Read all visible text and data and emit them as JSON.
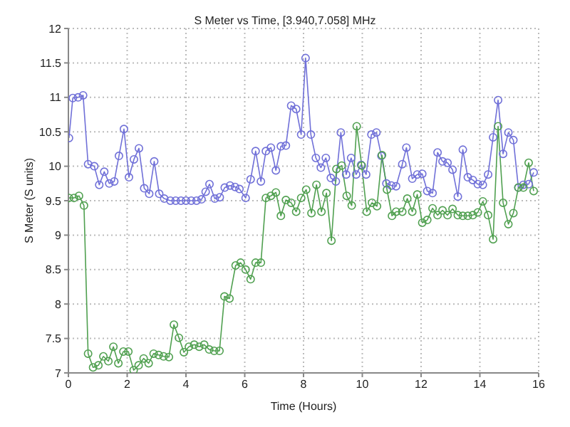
{
  "chart_data": {
    "type": "line",
    "title": "S Meter vs Time, [3.940,7.058] MHz",
    "xlabel": "Time (Hours)",
    "ylabel": "S Meter (S units)",
    "xlim": [
      0,
      16
    ],
    "xticks": [
      0,
      2,
      4,
      6,
      8,
      10,
      12,
      14,
      16
    ],
    "ylim": [
      7,
      12
    ],
    "yticks": [
      7,
      7.5,
      8,
      8.5,
      9,
      9.5,
      10,
      10.5,
      11,
      11.5,
      12
    ],
    "grid": true,
    "marker": "circle",
    "line_style": "solid",
    "series": [
      {
        "color": "#7070d8",
        "x": [
          0.02,
          0.15,
          0.33,
          0.5,
          0.67,
          0.88,
          1.05,
          1.22,
          1.39,
          1.56,
          1.72,
          1.89,
          2.06,
          2.23,
          2.4,
          2.58,
          2.75,
          2.92,
          3.09,
          3.26,
          3.47,
          3.65,
          3.83,
          4.0,
          4.18,
          4.36,
          4.53,
          4.67,
          4.8,
          4.98,
          5.15,
          5.32,
          5.5,
          5.67,
          5.82,
          6.03,
          6.2,
          6.37,
          6.55,
          6.72,
          6.89,
          7.06,
          7.23,
          7.4,
          7.58,
          7.75,
          7.92,
          8.07,
          8.25,
          8.42,
          8.59,
          8.76,
          8.93,
          9.1,
          9.27,
          9.45,
          9.62,
          9.79,
          9.96,
          10.13,
          10.31,
          10.48,
          10.65,
          10.82,
          10.99,
          11.15,
          11.36,
          11.5,
          11.7,
          11.87,
          12.04,
          12.21,
          12.39,
          12.56,
          12.73,
          12.9,
          13.07,
          13.25,
          13.42,
          13.59,
          13.76,
          13.93,
          14.1,
          14.28,
          14.45,
          14.62,
          14.79,
          14.97,
          15.14,
          15.31,
          15.48,
          15.66,
          15.83
        ],
        "values": [
          10.41,
          10.99,
          11.0,
          11.03,
          10.03,
          10.0,
          9.73,
          9.92,
          9.75,
          9.78,
          10.15,
          10.54,
          9.84,
          10.1,
          10.26,
          9.68,
          9.6,
          10.07,
          9.6,
          9.53,
          9.5,
          9.5,
          9.5,
          9.5,
          9.5,
          9.5,
          9.52,
          9.63,
          9.74,
          9.53,
          9.55,
          9.69,
          9.72,
          9.7,
          9.67,
          9.54,
          9.81,
          10.22,
          9.78,
          10.22,
          10.27,
          9.94,
          10.29,
          10.3,
          10.88,
          10.83,
          10.46,
          11.57,
          10.46,
          10.12,
          9.98,
          10.12,
          9.83,
          9.78,
          10.49,
          9.88,
          10.12,
          9.88,
          10.02,
          9.88,
          10.46,
          10.49,
          10.15,
          9.75,
          9.72,
          9.71,
          10.03,
          10.27,
          9.82,
          9.88,
          9.89,
          9.64,
          9.61,
          10.2,
          10.07,
          10.05,
          9.95,
          9.56,
          10.24,
          9.84,
          9.8,
          9.74,
          9.73,
          9.88,
          10.42,
          10.96,
          10.18,
          10.49,
          10.38,
          9.69,
          9.73,
          9.74,
          9.91
        ]
      },
      {
        "color": "#50a050",
        "x": [
          0.02,
          0.19,
          0.36,
          0.53,
          0.67,
          0.84,
          1.02,
          1.19,
          1.36,
          1.53,
          1.7,
          1.87,
          2.04,
          2.22,
          2.39,
          2.56,
          2.73,
          2.9,
          3.07,
          3.24,
          3.42,
          3.59,
          3.76,
          3.93,
          4.1,
          4.28,
          4.45,
          4.62,
          4.79,
          4.96,
          5.14,
          5.31,
          5.48,
          5.69,
          5.86,
          6.03,
          6.2,
          6.37,
          6.55,
          6.72,
          6.89,
          7.06,
          7.23,
          7.4,
          7.58,
          7.75,
          7.92,
          8.09,
          8.27,
          8.44,
          8.61,
          8.78,
          8.95,
          9.12,
          9.3,
          9.47,
          9.64,
          9.81,
          9.98,
          10.15,
          10.33,
          10.5,
          10.67,
          10.84,
          11.01,
          11.15,
          11.36,
          11.53,
          11.7,
          11.87,
          12.04,
          12.21,
          12.39,
          12.56,
          12.73,
          12.9,
          13.07,
          13.25,
          13.42,
          13.59,
          13.76,
          13.93,
          14.1,
          14.28,
          14.45,
          14.62,
          14.79,
          14.97,
          15.14,
          15.31,
          15.48,
          15.66,
          15.83
        ],
        "values": [
          9.54,
          9.54,
          9.57,
          9.43,
          7.28,
          7.08,
          7.11,
          7.24,
          7.17,
          7.38,
          7.14,
          7.31,
          7.31,
          7.04,
          7.11,
          7.21,
          7.14,
          7.28,
          7.26,
          7.24,
          7.23,
          7.7,
          7.51,
          7.3,
          7.38,
          7.41,
          7.38,
          7.41,
          7.34,
          7.32,
          7.32,
          8.11,
          8.08,
          8.56,
          8.6,
          8.5,
          8.36,
          8.6,
          8.6,
          9.54,
          9.57,
          9.62,
          9.28,
          9.51,
          9.47,
          9.34,
          9.54,
          9.66,
          9.32,
          9.73,
          9.34,
          9.61,
          8.92,
          9.96,
          10.01,
          9.57,
          9.43,
          10.58,
          10.01,
          9.34,
          9.47,
          9.42,
          10.16,
          9.66,
          9.28,
          9.34,
          9.34,
          9.53,
          9.34,
          9.59,
          9.18,
          9.22,
          9.39,
          9.29,
          9.36,
          9.29,
          9.38,
          9.29,
          9.28,
          9.28,
          9.29,
          9.33,
          9.49,
          9.29,
          8.94,
          10.58,
          9.47,
          9.16,
          9.32,
          9.69,
          9.69,
          10.05,
          9.64
        ]
      }
    ]
  }
}
